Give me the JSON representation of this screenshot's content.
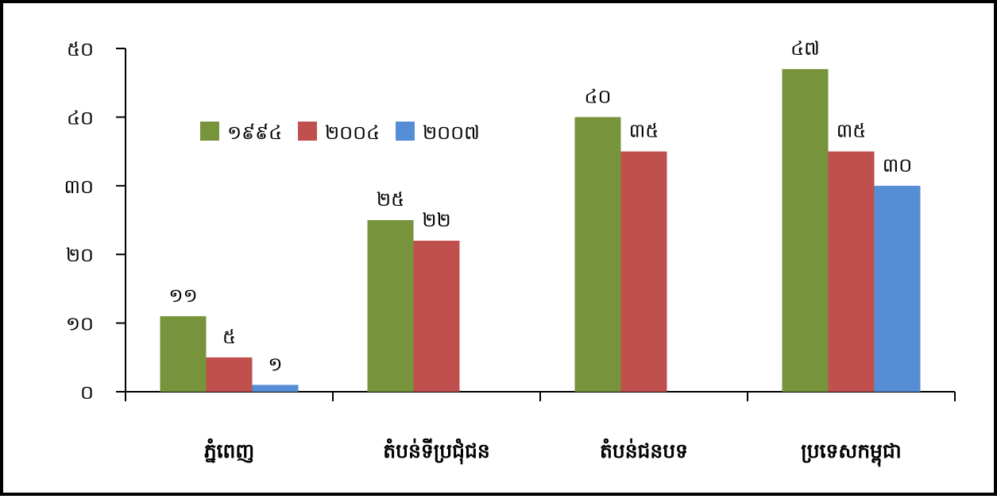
{
  "chart_data": {
    "type": "bar",
    "title": "",
    "xlabel": "",
    "ylabel": "",
    "ylim": [
      0,
      50
    ],
    "y_ticks": [
      0,
      10,
      20,
      30,
      40,
      50
    ],
    "y_tick_labels": [
      "០",
      "១០",
      "២០",
      "៣០",
      "៤០",
      "៥០"
    ],
    "grid": false,
    "legend_position": "top-left",
    "categories": [
      "ភ្នំពេញ",
      "តំបន់ទីប្រជុំជន",
      "តំបន់ជនបទ",
      "ប្រទេសកម្ពុជា"
    ],
    "series": [
      {
        "name": "១៩៩៤",
        "color": "#77933c",
        "values": [
          11,
          25,
          40,
          47
        ],
        "labels": [
          "១១",
          "២៥",
          "៤០",
          "៤៧"
        ]
      },
      {
        "name": "២០០៤",
        "color": "#c0504d",
        "values": [
          5,
          22,
          35,
          35
        ],
        "labels": [
          "៥",
          "២២",
          "៣៥",
          "៣៥"
        ]
      },
      {
        "name": "២០០៧",
        "color": "#558ed5",
        "values": [
          1,
          null,
          null,
          30
        ],
        "labels": [
          "១",
          "",
          "",
          "៣០"
        ]
      }
    ]
  }
}
